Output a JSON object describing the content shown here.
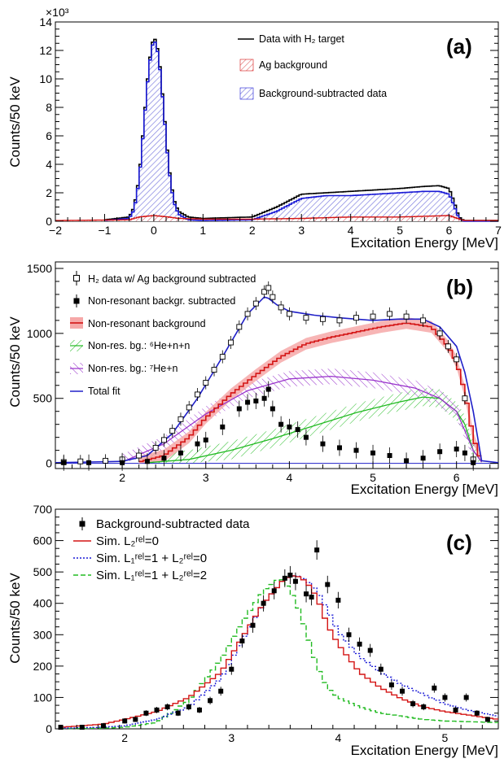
{
  "colors": {
    "data": "#000000",
    "ag_background": "#d41414",
    "subtracted": "#1a1ad6",
    "fill_blue": "#7f7fe0",
    "fill_red": "#f07a7a",
    "green": "#22bb22",
    "violet": "#9933cc",
    "total_fit": "#2020c8"
  },
  "chart_data": [
    {
      "type": "line",
      "panel_tag": "(a)",
      "xlabel": "Excitation Energy [MeV]",
      "ylabel": "Counts/50 keV",
      "y_multiplier": "×10³",
      "xlim": [
        -2,
        7
      ],
      "ylim": [
        0,
        14
      ],
      "xticks": [
        -2,
        -1,
        0,
        1,
        2,
        3,
        4,
        5,
        6,
        7
      ],
      "yticks": [
        0,
        2,
        4,
        6,
        8,
        10,
        12,
        14
      ],
      "legend": [
        {
          "label": "Data with H₂ target",
          "style": "black-line"
        },
        {
          "label": "Ag background",
          "style": "red-hatch"
        },
        {
          "label": "Background-subtracted data",
          "style": "blue-hatch"
        }
      ],
      "series": [
        {
          "name": "Data with H₂ target",
          "x": [
            -1.0,
            -0.5,
            -0.4,
            -0.3,
            -0.2,
            -0.1,
            0.0,
            0.1,
            0.2,
            0.3,
            0.4,
            0.5,
            0.7,
            1.0,
            2.0,
            2.5,
            3.0,
            3.5,
            4.0,
            4.5,
            5.0,
            5.5,
            5.8,
            6.0,
            6.1,
            6.2,
            6.3,
            7.0
          ],
          "y": [
            0.1,
            0.3,
            1.0,
            3.0,
            7.0,
            11.0,
            13.1,
            11.8,
            8.0,
            4.0,
            1.6,
            0.7,
            0.3,
            0.2,
            0.3,
            1.0,
            1.9,
            2.0,
            2.1,
            2.2,
            2.3,
            2.45,
            2.5,
            2.3,
            1.4,
            0.3,
            0.05,
            0.05
          ]
        },
        {
          "name": "Ag background",
          "x": [
            -2.0,
            -0.5,
            -0.3,
            0.0,
            0.3,
            0.5,
            1.0,
            2.0,
            3.0,
            4.0,
            5.0,
            6.0,
            6.3,
            7.0
          ],
          "y": [
            0.05,
            0.1,
            0.3,
            0.4,
            0.3,
            0.2,
            0.15,
            0.15,
            0.2,
            0.3,
            0.3,
            0.4,
            0.05,
            0.05
          ]
        },
        {
          "name": "Background-subtracted data",
          "x": [
            -1.0,
            -0.5,
            -0.4,
            -0.3,
            -0.2,
            -0.1,
            0.0,
            0.1,
            0.2,
            0.3,
            0.4,
            0.5,
            0.7,
            1.0,
            2.0,
            2.5,
            3.0,
            3.5,
            4.0,
            4.5,
            5.0,
            5.5,
            5.8,
            6.0,
            6.1,
            6.2,
            6.3,
            7.0
          ],
          "y": [
            0.05,
            0.2,
            0.8,
            2.8,
            6.8,
            10.8,
            12.9,
            11.6,
            7.8,
            3.8,
            1.4,
            0.5,
            0.1,
            0.05,
            0.1,
            0.7,
            1.6,
            1.8,
            1.8,
            1.9,
            2.0,
            2.1,
            2.1,
            1.9,
            1.1,
            0.2,
            0.0,
            0.0
          ]
        }
      ]
    },
    {
      "type": "line",
      "panel_tag": "(b)",
      "xlabel": "Excitation Energy [MeV]",
      "ylabel": "Counts/50 keV",
      "xlim": [
        1.2,
        6.5
      ],
      "ylim": [
        -40,
        1550
      ],
      "xticks": [
        2,
        3,
        4,
        5,
        6
      ],
      "yticks": [
        0,
        500,
        1000,
        1500
      ],
      "legend": [
        {
          "label": "H₂ data w/ Ag background subtracted",
          "style": "open-square"
        },
        {
          "label": "Non-resonant backgr. subtracted",
          "style": "filled-square"
        },
        {
          "label": "Non-resonant background",
          "style": "red-band"
        },
        {
          "label": "Non-res. bg.: ⁶He+n+n",
          "style": "green-hatch"
        },
        {
          "label": "Non-res. bg.: ⁷He+n",
          "style": "violet-hatch"
        },
        {
          "label": "Total fit",
          "style": "blue-line"
        }
      ],
      "series": [
        {
          "name": "H₂ data w/ Ag background subtracted",
          "x": [
            1.3,
            1.5,
            1.8,
            2.0,
            2.2,
            2.4,
            2.5,
            2.6,
            2.7,
            2.8,
            2.9,
            3.0,
            3.1,
            3.2,
            3.3,
            3.4,
            3.5,
            3.6,
            3.7,
            3.75,
            3.8,
            3.9,
            4.0,
            4.2,
            4.4,
            4.6,
            4.8,
            5.0,
            5.2,
            5.4,
            5.6,
            5.8,
            5.9,
            6.0,
            6.1,
            6.2
          ],
          "y": [
            10,
            15,
            20,
            30,
            60,
            120,
            180,
            250,
            340,
            430,
            530,
            620,
            720,
            820,
            930,
            1050,
            1150,
            1230,
            1320,
            1350,
            1280,
            1200,
            1150,
            1120,
            1110,
            1100,
            1120,
            1130,
            1150,
            1130,
            1100,
            1000,
            900,
            800,
            500,
            30
          ]
        },
        {
          "name": "Non-resonant backgr. subtracted",
          "x": [
            1.3,
            1.6,
            2.0,
            2.3,
            2.5,
            2.7,
            2.9,
            3.0,
            3.2,
            3.4,
            3.5,
            3.6,
            3.7,
            3.75,
            3.8,
            3.9,
            4.0,
            4.1,
            4.2,
            4.4,
            4.6,
            4.8,
            5.0,
            5.2,
            5.4,
            5.6,
            5.8,
            6.0,
            6.1,
            6.2
          ],
          "y": [
            5,
            5,
            5,
            15,
            40,
            80,
            150,
            180,
            280,
            420,
            470,
            480,
            500,
            570,
            420,
            300,
            280,
            260,
            200,
            150,
            120,
            100,
            80,
            60,
            20,
            40,
            90,
            110,
            80,
            5
          ]
        },
        {
          "name": "Non-resonant background",
          "x": [
            2.2,
            2.5,
            2.8,
            3.0,
            3.3,
            3.6,
            3.9,
            4.2,
            4.5,
            4.8,
            5.1,
            5.4,
            5.7,
            5.9,
            6.0,
            6.1,
            6.2,
            6.3
          ],
          "y": [
            10,
            60,
            200,
            350,
            530,
            680,
            820,
            920,
            970,
            1010,
            1050,
            1080,
            1050,
            900,
            780,
            550,
            200,
            10
          ]
        },
        {
          "name": "Non-res. bg.: ⁶He+n+n",
          "x": [
            2.3,
            2.8,
            3.3,
            3.8,
            4.3,
            4.8,
            5.3,
            5.6,
            5.8,
            6.0,
            6.1,
            6.2,
            6.3
          ],
          "y": [
            5,
            30,
            100,
            190,
            290,
            390,
            470,
            510,
            500,
            400,
            300,
            100,
            10
          ]
        },
        {
          "name": "Non-res. bg.: ⁷He+n",
          "x": [
            2.0,
            2.5,
            3.0,
            3.5,
            4.0,
            4.5,
            5.0,
            5.5,
            5.8,
            6.0,
            6.2,
            6.3
          ],
          "y": [
            10,
            150,
            380,
            560,
            650,
            670,
            640,
            580,
            500,
            400,
            100,
            10
          ]
        },
        {
          "name": "Total fit",
          "x": [
            1.2,
            2.0,
            2.3,
            2.6,
            2.9,
            3.2,
            3.5,
            3.7,
            3.75,
            3.85,
            4.0,
            4.3,
            4.6,
            5.0,
            5.3,
            5.6,
            5.8,
            6.0,
            6.1,
            6.2,
            6.3,
            6.5
          ],
          "y": [
            5,
            15,
            60,
            230,
            500,
            820,
            1150,
            1280,
            1270,
            1220,
            1170,
            1140,
            1120,
            1100,
            1110,
            1110,
            1050,
            900,
            700,
            400,
            20,
            5
          ]
        }
      ]
    },
    {
      "type": "line",
      "panel_tag": "(c)",
      "xlabel": "Excitation Energy [MeV]",
      "ylabel": "Counts/50 keV",
      "xlim": [
        1.35,
        5.5
      ],
      "ylim": [
        0,
        700
      ],
      "xticks": [
        2,
        3,
        4,
        5
      ],
      "yticks": [
        0,
        100,
        200,
        300,
        400,
        500,
        600,
        700
      ],
      "legend": [
        {
          "label": "Background-subtracted data",
          "style": "filled-square"
        },
        {
          "label": "Sim. L₂ʳᵉˡ=0",
          "style": "red-line"
        },
        {
          "label": "Sim. L₁ʳᵉˡ=1 + L₂ʳᵉˡ=0",
          "style": "blue-dotted"
        },
        {
          "label": "Sim. L₁ʳᵉˡ=1 + L₂ʳᵉˡ=2",
          "style": "green-dashed"
        }
      ],
      "series": [
        {
          "name": "Background-subtracted data",
          "x": [
            1.4,
            1.6,
            1.8,
            2.0,
            2.1,
            2.2,
            2.3,
            2.4,
            2.5,
            2.6,
            2.7,
            2.8,
            2.9,
            3.0,
            3.1,
            3.2,
            3.3,
            3.4,
            3.5,
            3.55,
            3.6,
            3.7,
            3.75,
            3.8,
            3.9,
            4.0,
            4.1,
            4.2,
            4.3,
            4.4,
            4.5,
            4.6,
            4.7,
            4.8,
            4.9,
            5.0,
            5.1,
            5.2,
            5.3,
            5.4
          ],
          "y": [
            5,
            5,
            10,
            25,
            30,
            50,
            60,
            70,
            50,
            70,
            60,
            90,
            120,
            190,
            280,
            330,
            400,
            440,
            480,
            490,
            470,
            430,
            420,
            570,
            460,
            410,
            300,
            270,
            250,
            190,
            140,
            120,
            80,
            70,
            130,
            100,
            60,
            100,
            50,
            30
          ]
        },
        {
          "name": "Sim. L₂ʳᵉˡ=0",
          "x": [
            1.4,
            1.8,
            2.0,
            2.3,
            2.6,
            2.9,
            3.1,
            3.3,
            3.5,
            3.6,
            3.7,
            3.8,
            3.9,
            4.0,
            4.2,
            4.4,
            4.6,
            4.8,
            5.0,
            5.2,
            5.5
          ],
          "y": [
            5,
            15,
            30,
            55,
            100,
            180,
            290,
            400,
            480,
            490,
            470,
            420,
            330,
            270,
            180,
            130,
            95,
            70,
            55,
            45,
            30
          ]
        },
        {
          "name": "Sim. L₁ʳᵉˡ=1 + L₂ʳᵉˡ=0",
          "x": [
            1.4,
            1.8,
            2.0,
            2.3,
            2.6,
            2.9,
            3.1,
            3.3,
            3.5,
            3.6,
            3.7,
            3.8,
            3.9,
            4.0,
            4.2,
            4.4,
            4.6,
            4.8,
            5.0,
            5.2,
            5.5
          ],
          "y": [
            2,
            5,
            10,
            30,
            70,
            160,
            280,
            400,
            480,
            490,
            475,
            440,
            380,
            310,
            230,
            180,
            140,
            110,
            80,
            60,
            40
          ]
        },
        {
          "name": "Sim. L₁ʳᵉˡ=1 + L₂ʳᵉˡ=2",
          "x": [
            1.4,
            1.8,
            2.0,
            2.3,
            2.6,
            2.9,
            3.1,
            3.3,
            3.45,
            3.5,
            3.6,
            3.7,
            3.8,
            3.9,
            4.0,
            4.2,
            4.4,
            4.6,
            4.8,
            5.0,
            5.5
          ],
          "y": [
            1,
            2,
            5,
            20,
            90,
            220,
            340,
            440,
            480,
            470,
            410,
            310,
            200,
            130,
            100,
            70,
            50,
            40,
            30,
            25,
            20
          ]
        }
      ]
    }
  ]
}
